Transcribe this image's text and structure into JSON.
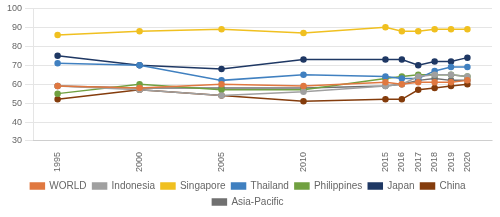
{
  "chart_data": {
    "type": "line",
    "x": [
      1995,
      2000,
      2005,
      2010,
      2015,
      2016,
      2017,
      2018,
      2019,
      2020
    ],
    "series": [
      {
        "name": "WORLD",
        "color": "#E07840",
        "values": [
          59,
          58,
          60,
          59,
          61,
          60,
          61,
          61,
          61,
          62
        ]
      },
      {
        "name": "Indonesia",
        "color": "#A0A0A0",
        "values": [
          59,
          57,
          54,
          56,
          59,
          60,
          64,
          65,
          65,
          64
        ]
      },
      {
        "name": "Singapore",
        "color": "#F0C020",
        "values": [
          86,
          88,
          89,
          87,
          90,
          88,
          88,
          89,
          89,
          89
        ]
      },
      {
        "name": "Thailand",
        "color": "#4080C0",
        "values": [
          71,
          70,
          62,
          65,
          64,
          63,
          63,
          67,
          69,
          69
        ]
      },
      {
        "name": "Philippines",
        "color": "#70A040",
        "values": [
          55,
          60,
          57,
          57,
          63,
          64,
          65,
          65,
          65,
          64
        ]
      },
      {
        "name": "Japan",
        "color": "#1F3864",
        "values": [
          75,
          70,
          68,
          73,
          73,
          73,
          70,
          72,
          72,
          74
        ]
      },
      {
        "name": "China",
        "color": "#843C0C",
        "values": [
          52,
          57,
          54,
          51,
          52,
          52,
          57,
          58,
          59,
          60
        ]
      },
      {
        "name": "Asia-Pacific",
        "color": "#707070",
        "values": [
          59,
          58,
          58,
          58,
          59,
          60,
          62,
          63,
          62,
          62
        ]
      }
    ],
    "xlim": [
      1993.5,
      2021.5
    ],
    "xticks": [
      1995,
      2000,
      2005,
      2010,
      2015,
      2016,
      2017,
      2018,
      2019,
      2020
    ],
    "ylim": [
      30,
      100
    ],
    "yticks": [
      30,
      40,
      50,
      60,
      70,
      80,
      90,
      100
    ],
    "grid": true,
    "marker": "circle",
    "legend": "bottom"
  }
}
